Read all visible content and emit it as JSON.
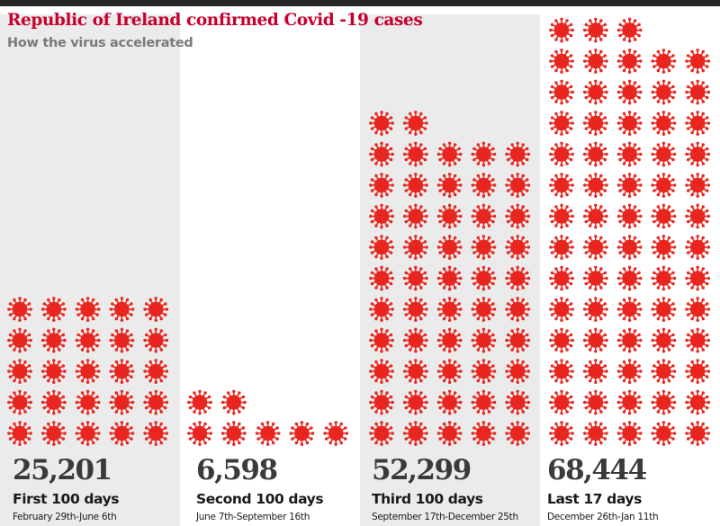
{
  "chart_data": {
    "type": "bar",
    "title": "Republic of Ireland confirmed Covid -19 cases",
    "subtitle": "How the virus accelerated",
    "categories": [
      "First 100 days",
      "Second 100 days",
      "Third 100 days",
      "Last 17 days"
    ],
    "date_ranges": [
      "February 29th-June 6th",
      "June 7th-September 16th",
      "September 17th-December 25th",
      "December 26th-Jan 11th"
    ],
    "values": [
      25201,
      6598,
      52299,
      68444
    ],
    "value_labels": [
      "25,201",
      "6,598",
      "52,299",
      "68,444"
    ],
    "icon_counts": [
      25,
      7,
      52,
      68
    ],
    "icon": "virus-icon",
    "colors": {
      "accent": "#c7002d",
      "virus": "#e8261f",
      "panel_grey": "#ebebeb",
      "value_text": "#3a3a3a",
      "subtitle_text": "#7a7a7a"
    }
  }
}
